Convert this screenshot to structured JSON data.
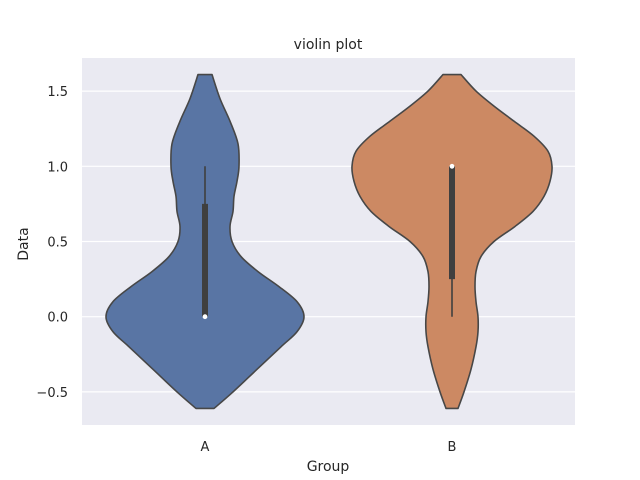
{
  "chart_data": {
    "type": "violin",
    "title": "violin plot",
    "xlabel": "Group",
    "ylabel": "Data",
    "categories": [
      "A",
      "B"
    ],
    "colors": {
      "A": "#5975a4",
      "B": "#cc8963",
      "background": "#eaeaf2",
      "grid": "#ffffff",
      "outline": "#474747"
    },
    "ylim": [
      -0.72,
      1.72
    ],
    "yticks": [
      -0.5,
      0.0,
      0.5,
      1.0,
      1.5
    ],
    "ytick_labels": [
      "−0.5",
      "0.0",
      "0.5",
      "1.0",
      "1.5"
    ],
    "grid": true,
    "violins": [
      {
        "name": "A",
        "min": 0.0,
        "q1": 0.0,
        "median": 0.0,
        "q3": 0.75,
        "max": 1.0,
        "range": [
          -0.61,
          1.61
        ],
        "density": [
          [
            -0.61,
            0.09
          ],
          [
            -0.5,
            0.28
          ],
          [
            -0.35,
            0.52
          ],
          [
            -0.2,
            0.76
          ],
          [
            -0.1,
            0.92
          ],
          [
            0.0,
            0.99
          ],
          [
            0.1,
            0.92
          ],
          [
            0.2,
            0.74
          ],
          [
            0.3,
            0.53
          ],
          [
            0.4,
            0.36
          ],
          [
            0.5,
            0.27
          ],
          [
            0.6,
            0.25
          ],
          [
            0.7,
            0.28
          ],
          [
            0.8,
            0.29
          ],
          [
            0.9,
            0.32
          ],
          [
            1.0,
            0.34
          ],
          [
            1.15,
            0.33
          ],
          [
            1.3,
            0.25
          ],
          [
            1.45,
            0.15
          ],
          [
            1.61,
            0.07
          ]
        ]
      },
      {
        "name": "B",
        "min": 0.0,
        "q1": 0.25,
        "median": 1.0,
        "q3": 1.0,
        "max": 1.0,
        "range": [
          -0.61,
          1.61
        ],
        "density": [
          [
            -0.61,
            0.06
          ],
          [
            -0.5,
            0.12
          ],
          [
            -0.35,
            0.19
          ],
          [
            -0.2,
            0.24
          ],
          [
            -0.1,
            0.26
          ],
          [
            0.0,
            0.26
          ],
          [
            0.1,
            0.24
          ],
          [
            0.2,
            0.23
          ],
          [
            0.3,
            0.24
          ],
          [
            0.4,
            0.29
          ],
          [
            0.5,
            0.42
          ],
          [
            0.6,
            0.63
          ],
          [
            0.7,
            0.81
          ],
          [
            0.8,
            0.92
          ],
          [
            0.9,
            0.98
          ],
          [
            1.0,
            1.0
          ],
          [
            1.1,
            0.96
          ],
          [
            1.2,
            0.82
          ],
          [
            1.3,
            0.62
          ],
          [
            1.4,
            0.42
          ],
          [
            1.5,
            0.24
          ],
          [
            1.61,
            0.09
          ]
        ]
      }
    ]
  }
}
